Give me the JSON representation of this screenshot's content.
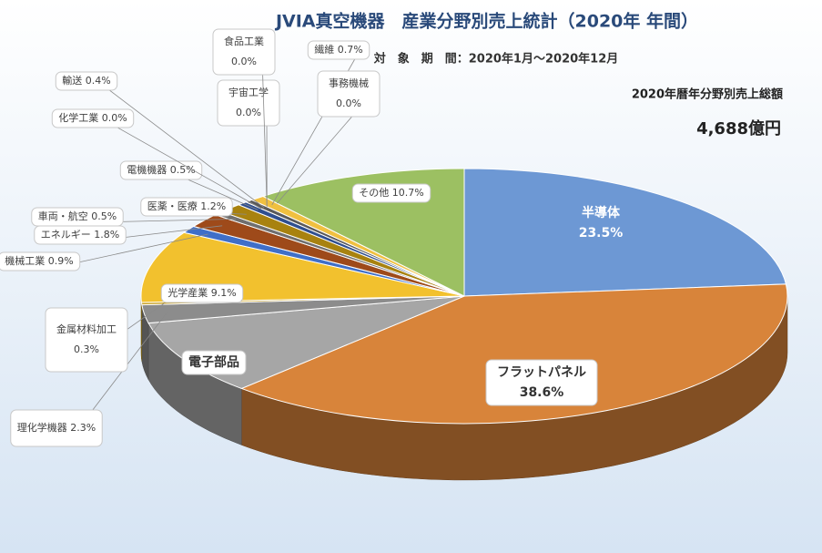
{
  "chart_data": {
    "type": "pie",
    "title": "JVIA真空機器　産業分野別売上統計（2020年 年間）",
    "subtitle": "対　象　期　間：2020年1月～2020年12月",
    "annotations": [
      "2020年暦年分野別売上総額",
      "4,688億円"
    ],
    "categories": [
      "半導体",
      "フラットパネル",
      "電子部品",
      "理化学機器",
      "金属材料加工",
      "光学産業",
      "機械工業",
      "エネルギー",
      "車両・航空",
      "医薬・医療",
      "電機機器",
      "化学工業",
      "輸送",
      "宇宙工学",
      "食品工業",
      "繊維",
      "事務機械",
      "その他"
    ],
    "values": [
      23.5,
      38.6,
      9.5,
      2.3,
      0.3,
      9.1,
      0.9,
      1.8,
      0.5,
      1.2,
      0.5,
      0.0,
      0.4,
      0.0,
      0.0,
      0.7,
      0.0,
      10.7
    ],
    "value_labels": [
      "23.5%",
      "38.6%",
      null,
      "2.3%",
      "0.3%",
      "9.1%",
      "0.9%",
      "1.8%",
      "0.5%",
      "1.2%",
      "0.5%",
      "0.0%",
      "0.4%",
      "0.0%",
      "0.0%",
      "0.7%",
      "0.0%",
      "10.7%"
    ],
    "colors": [
      "#6d98d4",
      "#d8843a",
      "#a6a6a6",
      "#8c8c8c",
      "#c9a227",
      "#f2c12e",
      "#3f6fc8",
      "#9e4a1a",
      "#6f6f6f",
      "#a8820f",
      "#2f4f8f",
      "#7a4a20",
      "#5a5a5a",
      "#4a6aa0",
      "#c08030",
      "#f0c040",
      "#3a5a90",
      "#9cc062"
    ]
  }
}
